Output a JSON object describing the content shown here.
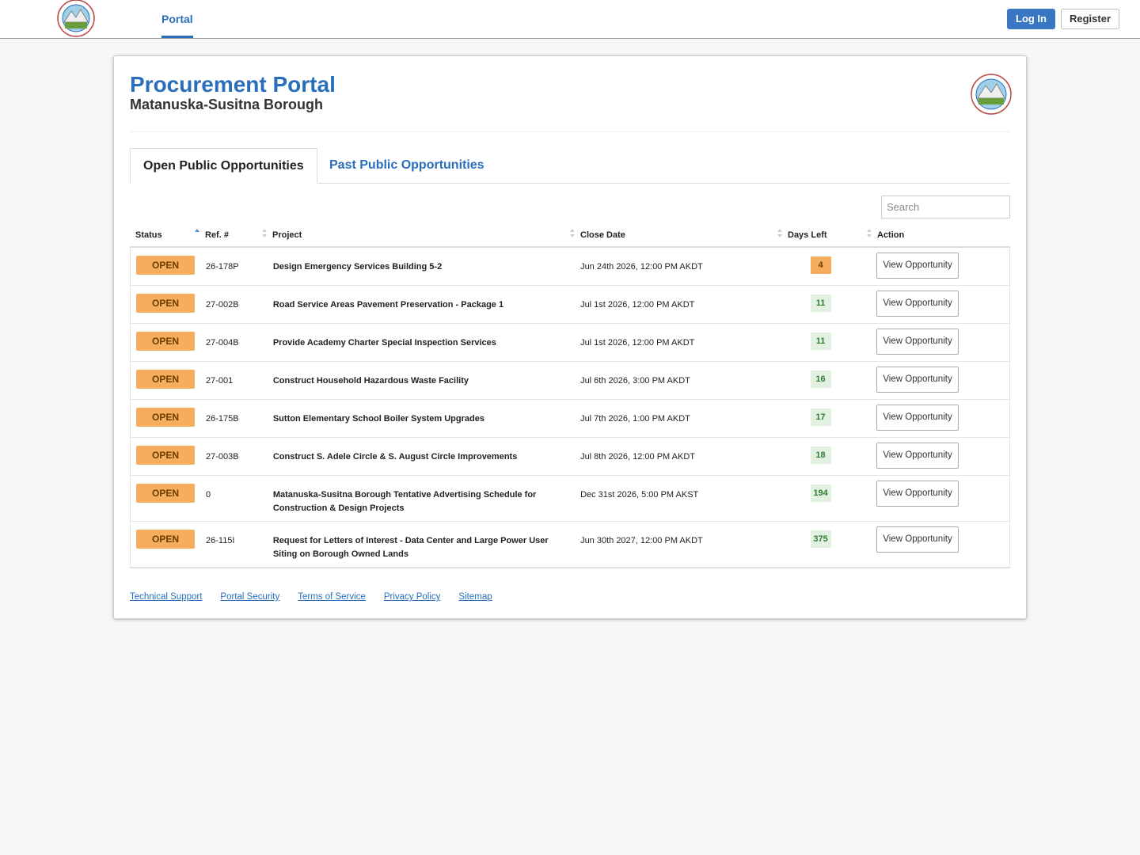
{
  "nav": {
    "tab": "Portal",
    "login": "Log In",
    "register": "Register"
  },
  "header": {
    "title": "Procurement Portal",
    "subtitle": "Matanuska-Susitna Borough"
  },
  "tabs": [
    "Open Public Opportunities",
    "Past Public Opportunities"
  ],
  "search": {
    "placeholder": "Search"
  },
  "table": {
    "columns": [
      "Status",
      "Ref. #",
      "Project",
      "Close Date",
      "Days Left",
      "Action"
    ],
    "rows": [
      {
        "status": "OPEN",
        "ref": "26-178P",
        "project": "Design Emergency Services Building 5-2",
        "close": "Jun 24th 2026, 12:00 PM AKDT",
        "days": 4,
        "days_color": "#f5ad5e",
        "action": "View Opportunity"
      },
      {
        "status": "OPEN",
        "ref": "27-002B",
        "project": "Road Service Areas Pavement Preservation - Package 1",
        "close": "Jul 1st 2026, 12:00 PM AKDT",
        "days": 11,
        "days_color": "#e3f1e3",
        "action": "View Opportunity"
      },
      {
        "status": "OPEN",
        "ref": "27-004B",
        "project": "Provide Academy Charter Special Inspection Services",
        "close": "Jul 1st 2026, 12:00 PM AKDT",
        "days": 11,
        "days_color": "#e3f1e3",
        "action": "View Opportunity"
      },
      {
        "status": "OPEN",
        "ref": "27-001",
        "project": "Construct Household Hazardous Waste Facility",
        "close": "Jul 6th 2026, 3:00 PM AKDT",
        "days": 16,
        "days_color": "#e3f1e3",
        "action": "View Opportunity"
      },
      {
        "status": "OPEN",
        "ref": "26-175B",
        "project": "Sutton Elementary School Boiler System Upgrades",
        "close": "Jul 7th 2026, 1:00 PM AKDT",
        "days": 17,
        "days_color": "#e3f1e3",
        "action": "View Opportunity"
      },
      {
        "status": "OPEN",
        "ref": "27-003B",
        "project": "Construct S. Adele Circle & S. August Circle Improvements",
        "close": "Jul 8th 2026, 12:00 PM AKDT",
        "days": 18,
        "days_color": "#e3f1e3",
        "action": "View Opportunity"
      },
      {
        "status": "OPEN",
        "ref": "0",
        "project": "Matanuska-Susitna Borough Tentative Advertising Schedule for Construction & Design Projects",
        "close": "Dec 31st 2026, 5:00 PM AKST",
        "days": 194,
        "days_color": "#e3f1e3",
        "action": "View Opportunity"
      },
      {
        "status": "OPEN",
        "ref": "26-115I",
        "project": "Request for Letters of Interest - Data Center and Large Power User Siting on Borough Owned Lands",
        "close": "Jun 30th 2027, 12:00 PM AKDT",
        "days": 375,
        "days_color": "#e3f1e3",
        "action": "View Opportunity"
      }
    ]
  },
  "footer": {
    "links": [
      "Technical Support",
      "Portal Security",
      "Terms of Service",
      "Privacy Policy",
      "Sitemap"
    ]
  }
}
